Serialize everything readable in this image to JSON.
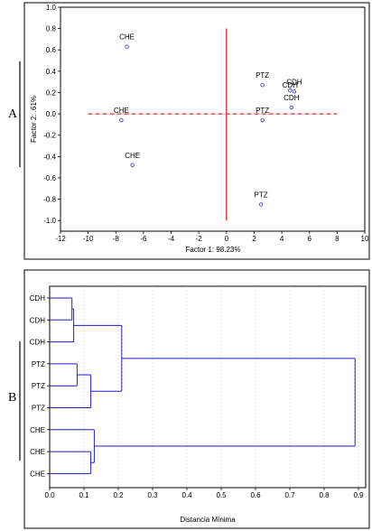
{
  "chart_data": [
    {
      "type": "scatter",
      "panel_label": "A",
      "xlabel": "Factor 1: 98.23%",
      "ylabel": "Factor 2:  .61%",
      "xlim": [
        -12,
        10
      ],
      "ylim": [
        -1.1,
        1.0
      ],
      "xticks": [
        -12,
        -10,
        -8,
        -6,
        -4,
        -2,
        0,
        2,
        4,
        6,
        8,
        10
      ],
      "yticks": [
        1.0,
        0.8,
        0.6,
        0.4,
        0.2,
        0.0,
        -0.2,
        -0.4,
        -0.6,
        -0.8,
        -1.0
      ],
      "xtick_labels": [
        "-12",
        "-10",
        "-8",
        "-6",
        "-4",
        "-2",
        "0",
        "2",
        "4",
        "6",
        "8",
        "10"
      ],
      "ytick_labels": [
        "1.0",
        "0.8",
        "0.6",
        "0.4",
        "0.2",
        "0.0",
        "-0.2",
        "-0.4",
        "-0.6",
        "-0.8",
        "-1.0"
      ],
      "grid": false,
      "reference_lines": {
        "horizontal": {
          "y": 0.0,
          "x_from": -10,
          "x_to": 8,
          "style": "dashed",
          "color": "#e0302a"
        },
        "vertical": {
          "x": 0.0,
          "y_from": -1.0,
          "y_to": 0.8,
          "style": "solid",
          "color": "#e0302a"
        }
      },
      "marker_color": "#3232c8",
      "points": [
        {
          "label": "CHE",
          "x": -7.2,
          "y": 0.63
        },
        {
          "label": "CHE",
          "x": -7.6,
          "y": -0.06
        },
        {
          "label": "CHE",
          "x": -6.8,
          "y": -0.48
        },
        {
          "label": "PTZ",
          "x": 2.6,
          "y": 0.27
        },
        {
          "label": "PTZ",
          "x": 2.6,
          "y": -0.06
        },
        {
          "label": "PTZ",
          "x": 2.5,
          "y": -0.85
        },
        {
          "label": "CDH",
          "x": 4.6,
          "y": 0.22
        },
        {
          "label": "CDH",
          "x": 4.9,
          "y": 0.21
        },
        {
          "label": "CDH",
          "x": 4.7,
          "y": 0.06
        }
      ]
    },
    {
      "type": "dendrogram",
      "panel_label": "B",
      "xlabel": "Distancia Mínima",
      "xlim": [
        0.0,
        0.9
      ],
      "xticks": [
        0.0,
        0.1,
        0.2,
        0.3,
        0.4,
        0.5,
        0.6,
        0.7,
        0.8,
        0.9
      ],
      "xtick_labels": [
        "0.0",
        "0.1",
        "0.2",
        "0.3",
        "0.4",
        "0.5",
        "0.6",
        "0.7",
        "0.8",
        "0.9"
      ],
      "grid": true,
      "line_color": "#1f1fbf",
      "leaves": [
        "CDH",
        "CDH",
        "CDH",
        "PTZ",
        "PTZ",
        "PTZ",
        "CHE",
        "CHE",
        "CHE"
      ],
      "merges": [
        {
          "a": 0,
          "b": 1,
          "height": 0.065
        },
        {
          "a": 9,
          "b": 2,
          "height": 0.07
        },
        {
          "a": 3,
          "b": 4,
          "height": 0.08
        },
        {
          "a": 11,
          "b": 5,
          "height": 0.12
        },
        {
          "a": 10,
          "b": 12,
          "height": 0.21
        },
        {
          "a": 7,
          "b": 8,
          "height": 0.12
        },
        {
          "a": 6,
          "b": 14,
          "height": 0.13
        },
        {
          "a": 13,
          "b": 15,
          "height": 0.89
        }
      ]
    }
  ]
}
